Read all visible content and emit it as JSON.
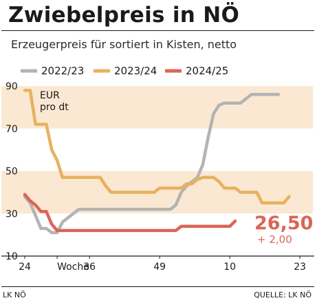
{
  "title": "Zwiebelpreis in NÖ",
  "subtitle": "Erzeugerpreis für sortiert in Kisten, netto",
  "footer": {
    "source_left": "LK NÖ",
    "source_right": "QUELLE: LK NÖ"
  },
  "colors": {
    "band": "#fbe8d2",
    "s2022": "#b3b3b3",
    "s2023": "#e8b15e",
    "s2024": "#dc6555",
    "axis": "#1a1a1a"
  },
  "chart_data": {
    "type": "line",
    "unit_label": [
      "EUR",
      "pro dt"
    ],
    "ylim": [
      10,
      90
    ],
    "yticks": [
      10,
      30,
      50,
      70,
      90
    ],
    "bands": [
      [
        30,
        50
      ],
      [
        70,
        90
      ]
    ],
    "x_count": 53,
    "xticks": [
      {
        "i": 0,
        "label": "24"
      },
      {
        "i": 6,
        "label": "Woche"
      },
      {
        "i": 12,
        "label": "36"
      },
      {
        "i": 25,
        "label": "49"
      },
      {
        "i": 38,
        "label": "10"
      },
      {
        "i": 51,
        "label": "23"
      }
    ],
    "series": [
      {
        "name": "2022/23",
        "color": "#b3b3b3",
        "values": [
          38,
          35,
          29,
          23,
          23,
          21,
          21,
          26,
          28,
          30,
          32,
          32,
          32,
          32,
          32,
          32,
          32,
          32,
          32,
          32,
          32,
          32,
          32,
          32,
          32,
          32,
          32,
          32,
          34,
          40,
          43,
          45,
          47,
          53,
          66,
          77,
          81,
          82,
          82,
          82,
          82,
          84,
          86,
          86,
          86,
          86,
          86,
          86
        ]
      },
      {
        "name": "2023/24",
        "color": "#e8b15e",
        "values": [
          88,
          88,
          72,
          72,
          72,
          60,
          55,
          47,
          47,
          47,
          47,
          47,
          47,
          47,
          47,
          43,
          40,
          40,
          40,
          40,
          40,
          40,
          40,
          40,
          40,
          42,
          42,
          42,
          42,
          42,
          44,
          44,
          46,
          47,
          47,
          47,
          45,
          42,
          42,
          42,
          40,
          40,
          40,
          40,
          35,
          35,
          35,
          35,
          35,
          38
        ]
      },
      {
        "name": "2024/25",
        "color": "#dc6555",
        "values": [
          39,
          36,
          34,
          31,
          31,
          25,
          22,
          22,
          22,
          22,
          22,
          22,
          22,
          22,
          22,
          22,
          22,
          22,
          22,
          22,
          22,
          22,
          22,
          22,
          22,
          22,
          22,
          22,
          22,
          24,
          24,
          24,
          24,
          24,
          24,
          24,
          24,
          24,
          24,
          26.5
        ]
      }
    ],
    "annotation": {
      "value": "26,50",
      "change": "+ 2,00"
    }
  }
}
